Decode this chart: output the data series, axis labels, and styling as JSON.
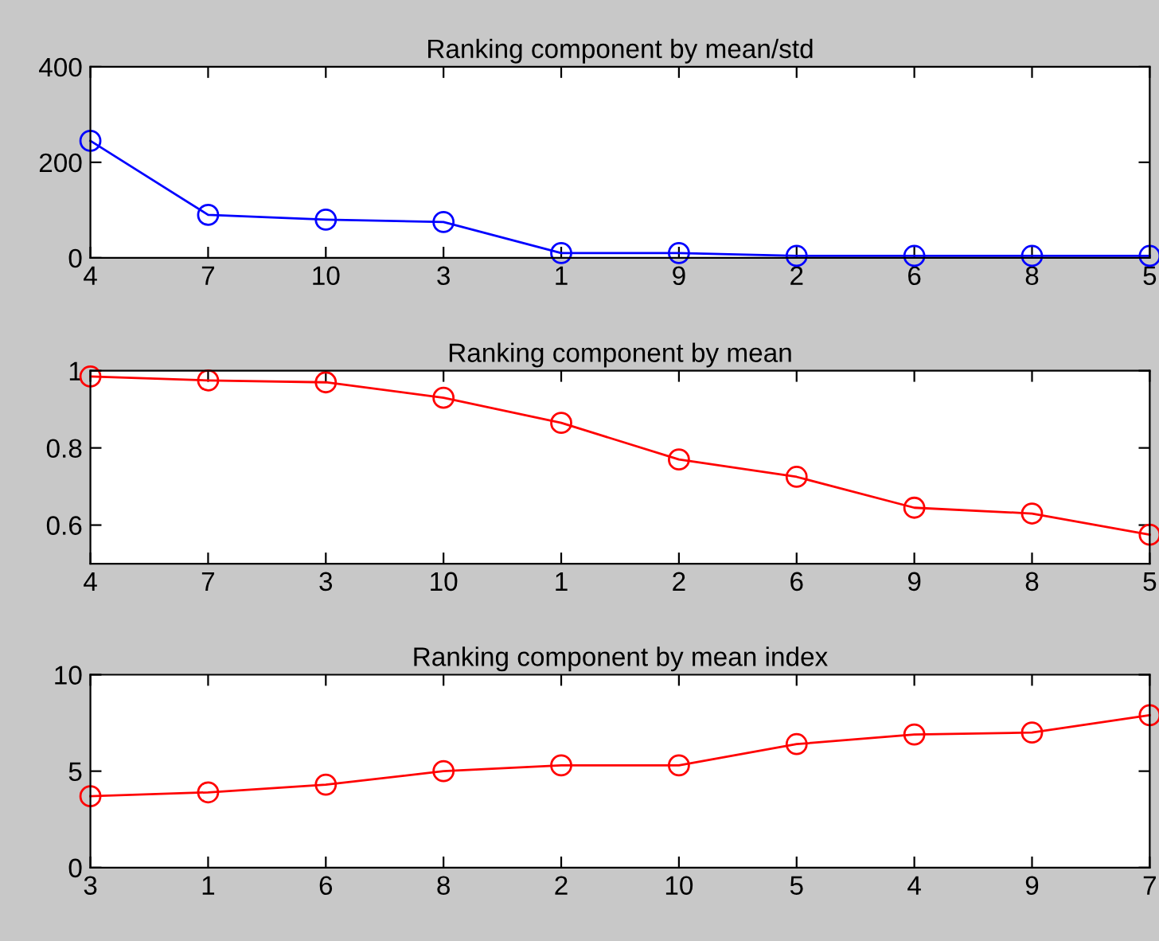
{
  "chart_data": [
    {
      "type": "line",
      "title": "Ranking component by mean/std",
      "categories": [
        "4",
        "7",
        "10",
        "3",
        "1",
        "9",
        "2",
        "6",
        "8",
        "5"
      ],
      "series": [
        {
          "color": "#0000ff",
          "values": [
            245,
            90,
            80,
            75,
            10,
            10,
            4,
            4,
            4,
            4
          ]
        }
      ],
      "ylim": [
        0,
        400
      ],
      "yticks": [
        0,
        200,
        400
      ],
      "marker": "circle",
      "line_style": "solid",
      "grid": false,
      "legend": false
    },
    {
      "type": "line",
      "title": "Ranking component by mean",
      "categories": [
        "4",
        "7",
        "3",
        "10",
        "1",
        "2",
        "6",
        "9",
        "8",
        "5"
      ],
      "series": [
        {
          "color": "#ff0000",
          "values": [
            0.985,
            0.975,
            0.97,
            0.93,
            0.865,
            0.77,
            0.725,
            0.645,
            0.63,
            0.575
          ]
        }
      ],
      "ylim": [
        0.5,
        1
      ],
      "yticks": [
        0.6,
        0.8,
        1
      ],
      "marker": "circle",
      "line_style": "solid",
      "grid": false,
      "legend": false
    },
    {
      "type": "line",
      "title": "Ranking component by mean index",
      "categories": [
        "3",
        "1",
        "6",
        "8",
        "2",
        "10",
        "5",
        "4",
        "9",
        "7"
      ],
      "series": [
        {
          "color": "#ff0000",
          "values": [
            3.7,
            3.9,
            4.3,
            5.0,
            5.3,
            5.3,
            6.4,
            6.9,
            7.0,
            7.9
          ]
        }
      ],
      "ylim": [
        0,
        10
      ],
      "yticks": [
        0,
        5,
        10
      ],
      "marker": "circle",
      "line_style": "solid",
      "grid": false,
      "legend": false
    }
  ]
}
